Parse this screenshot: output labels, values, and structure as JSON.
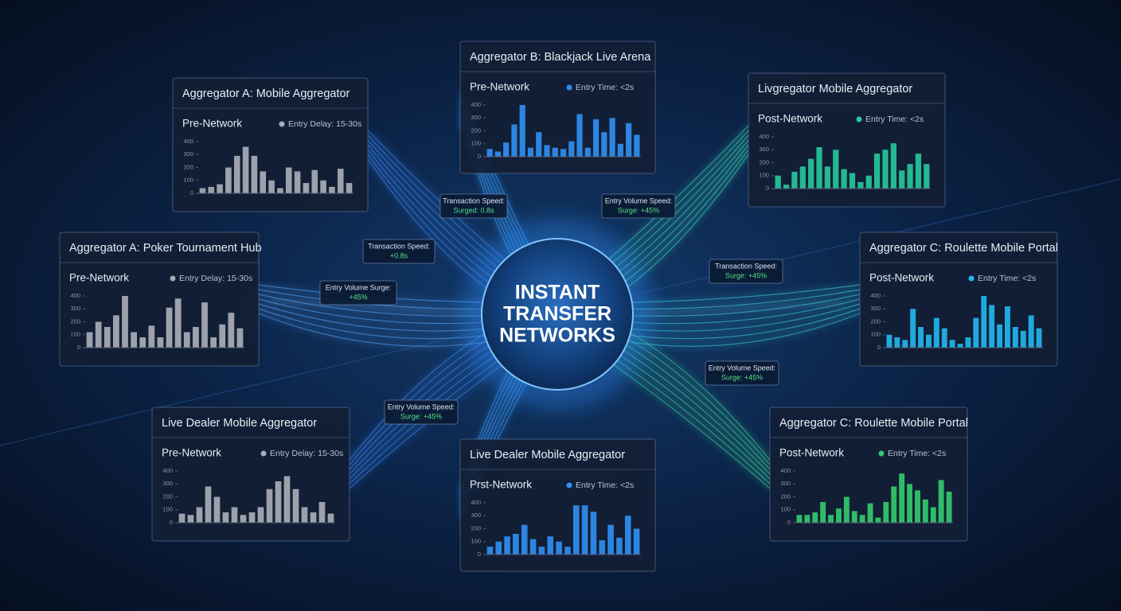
{
  "center_title": [
    "INSTANT",
    "TRANSFER",
    "NETWORKS"
  ],
  "badges": [
    {
      "lines": [
        "Transaction Speed:",
        "Surged: 0.8s"
      ]
    },
    {
      "lines": [
        "Transaction Speed:",
        "+0.8s"
      ]
    },
    {
      "lines": [
        "Entry Volume Surge:",
        "+45%"
      ]
    },
    {
      "lines": [
        "Entry Volume Speed:",
        "Surge: +45%"
      ]
    },
    {
      "lines": [
        "Transaction Speed:",
        "Surge: +45%"
      ]
    },
    {
      "lines": [
        "Entry Volume Speed:",
        "Surge: +45%"
      ]
    },
    {
      "lines": [
        "Entry Volume Speed:",
        "Surge: +45%"
      ]
    }
  ],
  "chart_data": [
    {
      "type": "bar",
      "title": "Aggregator A: Mobile Aggregator",
      "subtitle": "Pre-Network",
      "legend": "Entry Delay: 15-30s",
      "color": "#a9adb5",
      "values": [
        40,
        50,
        70,
        200,
        290,
        360,
        290,
        170,
        100,
        40,
        200,
        170,
        80,
        180,
        100,
        50,
        190,
        80
      ],
      "ylim": [
        0,
        400
      ],
      "yticks": [
        0,
        100,
        200,
        300,
        400
      ]
    },
    {
      "type": "bar",
      "title": "Aggregator B: Blackjack Live Arena",
      "subtitle": "Pre-Network",
      "legend": "Entry Time: <2s",
      "color": "#2f8ff0",
      "values": [
        60,
        40,
        110,
        250,
        400,
        70,
        190,
        90,
        70,
        60,
        120,
        330,
        70,
        290,
        190,
        300,
        100,
        260,
        170
      ],
      "ylim": [
        0,
        400
      ],
      "yticks": [
        0,
        100,
        200,
        300,
        400
      ]
    },
    {
      "type": "bar",
      "title": "Livgregator Mobile Aggregator",
      "subtitle": "Post-Network",
      "legend": "Entry Time: <2s",
      "color": "#26c79a",
      "values": [
        100,
        30,
        130,
        170,
        230,
        320,
        170,
        300,
        150,
        120,
        50,
        100,
        270,
        300,
        350,
        140,
        190,
        270,
        190
      ],
      "ylim": [
        0,
        400
      ],
      "yticks": [
        0,
        100,
        200,
        300,
        400
      ]
    },
    {
      "type": "bar",
      "title": "Aggregator A: Poker Tournament Hub",
      "subtitle": "Pre-Network",
      "legend": "Entry Delay: 15-30s",
      "color": "#a9adb5",
      "values": [
        120,
        200,
        160,
        250,
        400,
        120,
        80,
        170,
        80,
        310,
        380,
        120,
        160,
        350,
        80,
        180,
        270,
        150
      ],
      "ylim": [
        0,
        400
      ],
      "yticks": [
        0,
        100,
        200,
        300,
        400
      ]
    },
    {
      "type": "bar",
      "title": "Aggregator C: Roulette Mobile Portal",
      "subtitle": "Post-Network",
      "legend": "Entry Time: <2s",
      "color": "#22b5ea",
      "values": [
        100,
        80,
        60,
        300,
        160,
        100,
        230,
        150,
        60,
        30,
        80,
        230,
        400,
        330,
        180,
        320,
        160,
        130,
        250,
        150
      ],
      "ylim": [
        0,
        400
      ],
      "yticks": [
        0,
        100,
        200,
        300,
        400
      ]
    },
    {
      "type": "bar",
      "title": "Live Dealer Mobile Aggregator",
      "subtitle": "Pre-Network",
      "legend": "Entry Delay: 15-30s",
      "color": "#a9adb5",
      "values": [
        70,
        60,
        120,
        280,
        200,
        80,
        120,
        60,
        80,
        120,
        260,
        320,
        360,
        260,
        120,
        80,
        160,
        70
      ],
      "ylim": [
        0,
        400
      ],
      "yticks": [
        0,
        100,
        200,
        300,
        400
      ]
    },
    {
      "type": "bar",
      "title": "Live Dealer Mobile Aggregator",
      "subtitle": "Prst-Network",
      "legend": "Entry Time: <2s",
      "color": "#2f8ff0",
      "values": [
        60,
        100,
        140,
        160,
        230,
        120,
        60,
        140,
        100,
        60,
        380,
        380,
        330,
        110,
        230,
        130,
        300,
        200
      ],
      "ylim": [
        0,
        400
      ],
      "yticks": [
        0,
        100,
        200,
        300,
        400
      ]
    },
    {
      "type": "bar",
      "title": "Aggregator C: Roulette Mobile Portal",
      "subtitle": "Post-Network",
      "legend": "Entry Time: <2s",
      "color": "#33c96a",
      "values": [
        60,
        60,
        80,
        160,
        60,
        110,
        200,
        90,
        60,
        150,
        40,
        160,
        280,
        380,
        300,
        250,
        180,
        120,
        330,
        240
      ],
      "ylim": [
        0,
        400
      ],
      "yticks": [
        0,
        100,
        200,
        300,
        400
      ]
    }
  ]
}
